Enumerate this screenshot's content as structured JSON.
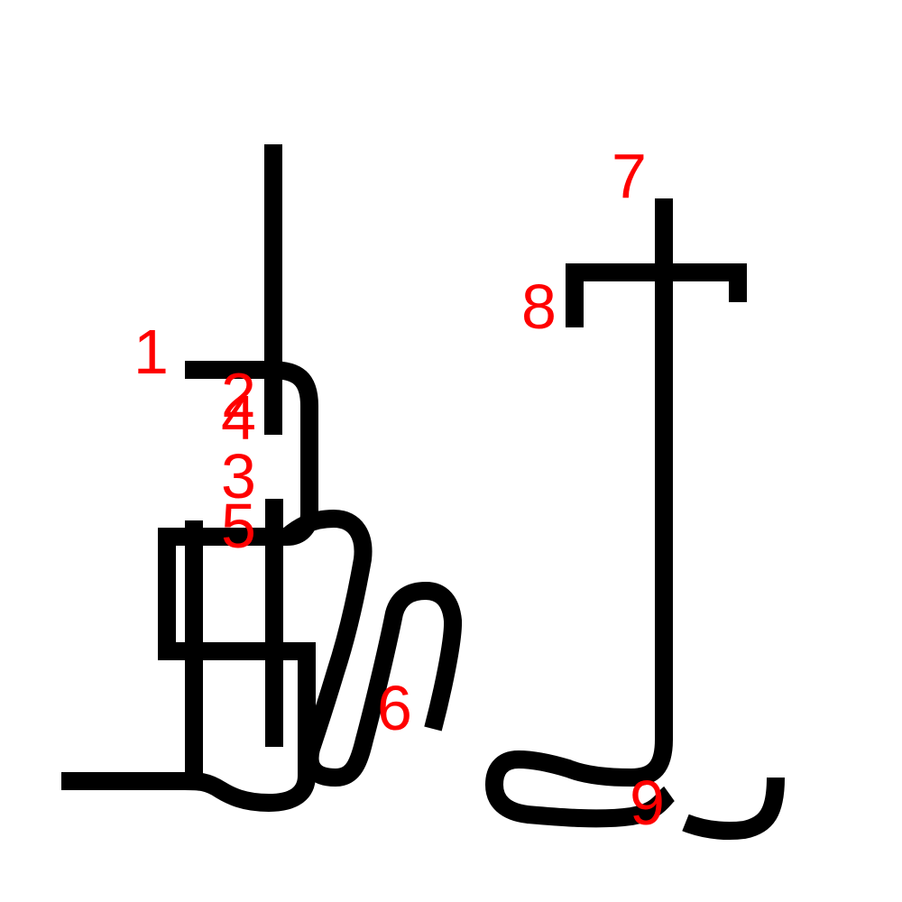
{
  "colors": {
    "stroke": "#000000",
    "label": "#ff0000",
    "background": "#ffffff"
  },
  "stroke_labels": [
    "1",
    "2",
    "3",
    "4",
    "5",
    "6",
    "7",
    "8",
    "9"
  ]
}
